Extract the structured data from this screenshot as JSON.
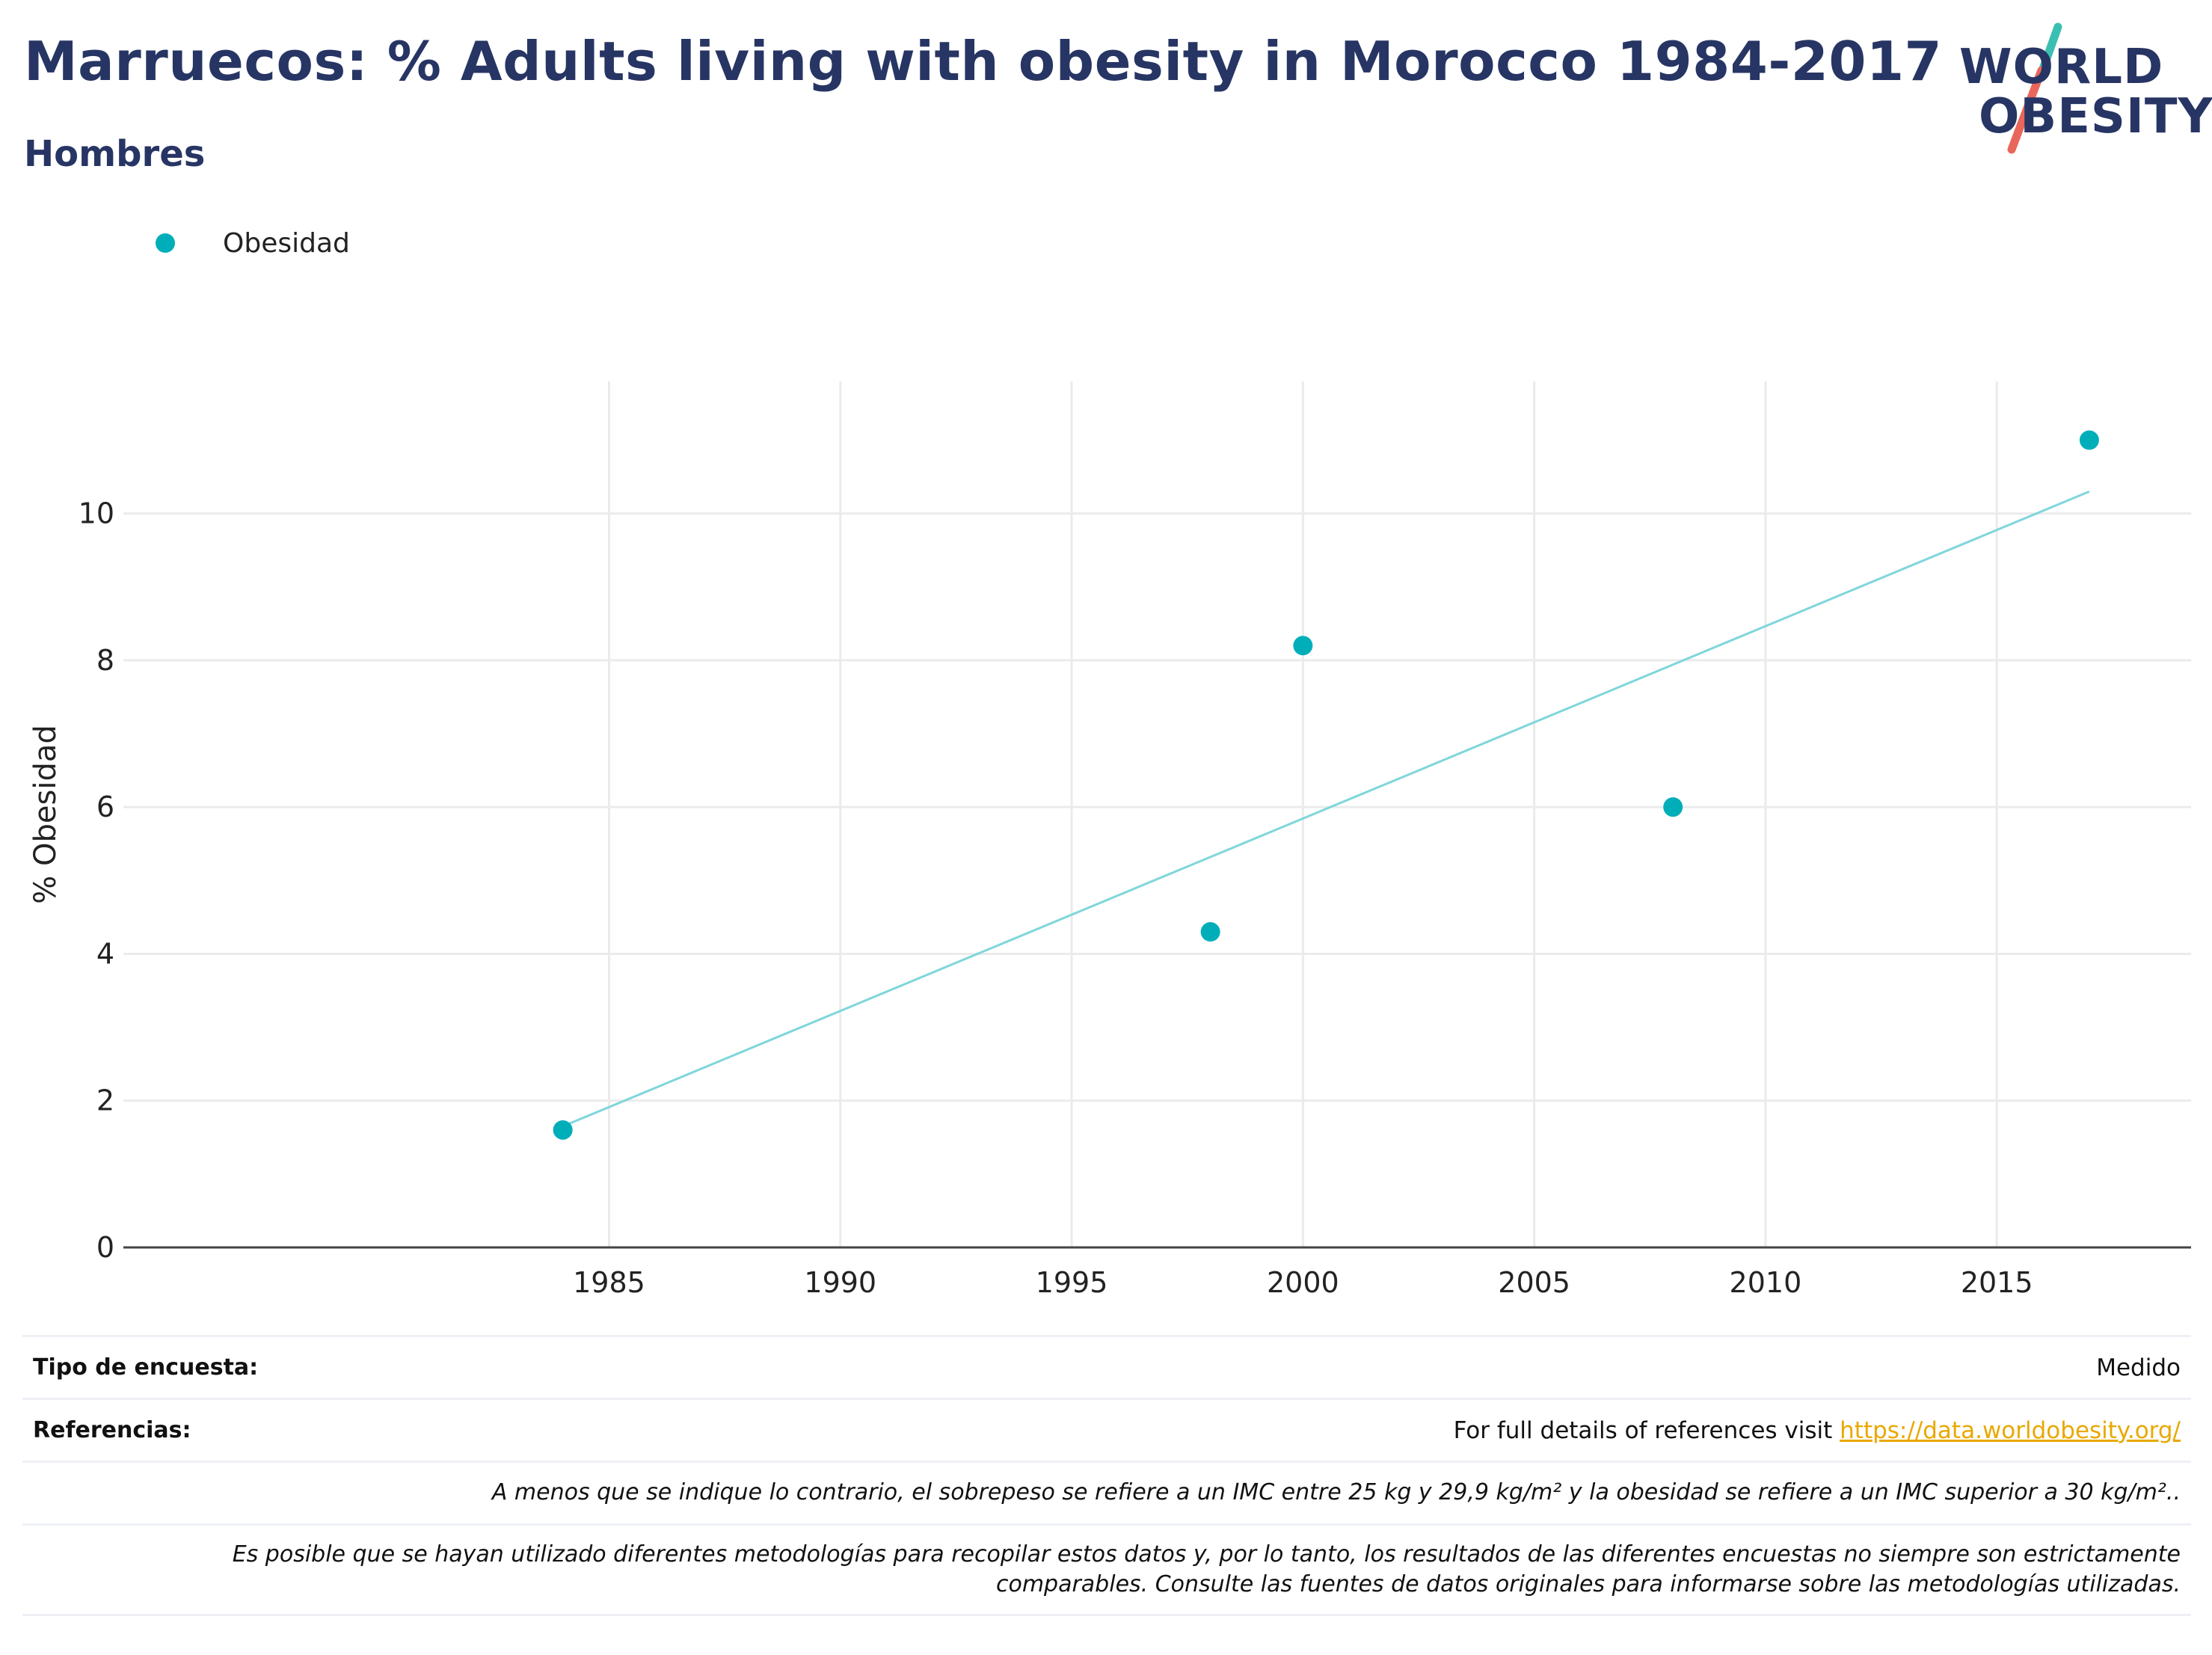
{
  "header": {
    "title": "Marruecos: % Adults living with obesity in Morocco 1984-2017",
    "subtitle": "Hombres"
  },
  "logo": {
    "line1": "WORLD",
    "line2": "OBESITY",
    "slash_colors": [
      "#3bbfb2",
      "#e8675a"
    ]
  },
  "legend": {
    "items": [
      {
        "label": "Obesidad",
        "color": "#00aeb9"
      }
    ],
    "placement": "top-left"
  },
  "chart_data": {
    "type": "scatter",
    "title": "",
    "xlabel": "",
    "ylabel": "% Obesidad",
    "xlim": [
      1974.5,
      2019.2
    ],
    "ylim": [
      0,
      11.8
    ],
    "x_ticks": [
      1985,
      1990,
      1995,
      2000,
      2005,
      2010,
      2015
    ],
    "y_ticks": [
      0,
      2,
      4,
      6,
      8,
      10
    ],
    "grid": true,
    "series": [
      {
        "name": "Obesidad",
        "color": "#00aeb9",
        "points": [
          {
            "x": 1984,
            "y": 1.6
          },
          {
            "x": 1998,
            "y": 4.3
          },
          {
            "x": 2000,
            "y": 8.2
          },
          {
            "x": 2008,
            "y": 6.0
          },
          {
            "x": 2017,
            "y": 11.0
          }
        ]
      }
    ],
    "trendline": {
      "color": "#7fd6db",
      "from": {
        "x": 1984,
        "y": 1.65
      },
      "to": {
        "x": 2017,
        "y": 10.3
      }
    }
  },
  "footer": {
    "survey_label": "Tipo de encuesta:",
    "survey_value": "Medido",
    "references_label": "Referencias:",
    "references_text": "For full details of references visit ",
    "references_link": "https://data.worldobesity.org/",
    "note1": "A menos que se indique lo contrario, el sobrepeso se refiere a un IMC entre 25 kg y 29,9 kg/m² y la obesidad se refiere a un IMC superior a 30 kg/m²..",
    "note2_line1": "Es posible que se hayan utilizado diferentes metodologías para recopilar estos datos y, por lo tanto, los resultados de las diferentes encuestas no siempre son estrictamente",
    "note2_line2": "comparables. Consulte las fuentes de datos originales para informarse sobre las metodologías utilizadas."
  }
}
